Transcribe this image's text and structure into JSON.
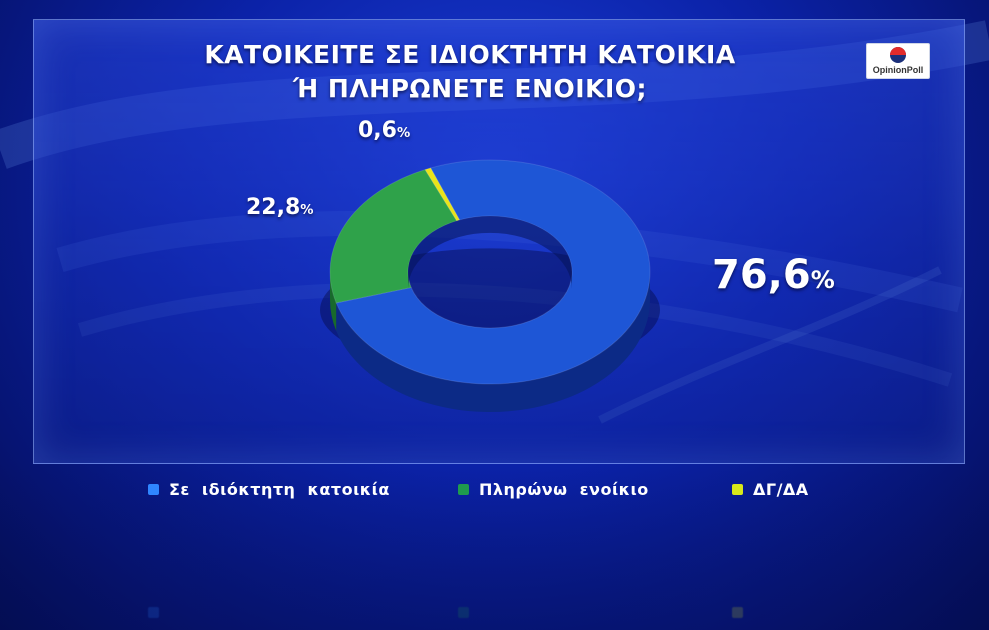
{
  "title_line1": "ΚΑΤΟΙΚΕΙΤΕ ΣΕ ΙΔΙΟΚΤΗΤΗ ΚΑΤΟΙΚΙΑ",
  "title_line2": "Ή ΠΛΗΡΩΝΕΤΕ ΕΝΟΙΚΙΟ;",
  "logo_text": "OpinionPoll",
  "chart_data": {
    "type": "pie",
    "title": "ΚΑΤΟΙΚΕΙΤΕ ΣΕ ΙΔΙΟΚΤΗΤΗ ΚΑΤΟΙΚΙΑ Ή ΠΛΗΡΩΝΕΤΕ ΕΝΟΙΚΙΟ;",
    "categories": [
      "Σε ιδιόκτητη κατοικία",
      "Πληρώνω ενοίκιο",
      "ΔΓ/ΔΑ"
    ],
    "values": [
      76.6,
      22.8,
      0.6
    ],
    "labels": [
      "76,6",
      "22,8",
      "0,6"
    ],
    "unit": "%",
    "colors": [
      "#1e56d6",
      "#2fa24a",
      "#e9e41a"
    ],
    "legend_swatch_colors": [
      "#2f86ff",
      "#1f9a4e",
      "#d8e81a"
    ],
    "donut": true,
    "legend": "bottom"
  }
}
